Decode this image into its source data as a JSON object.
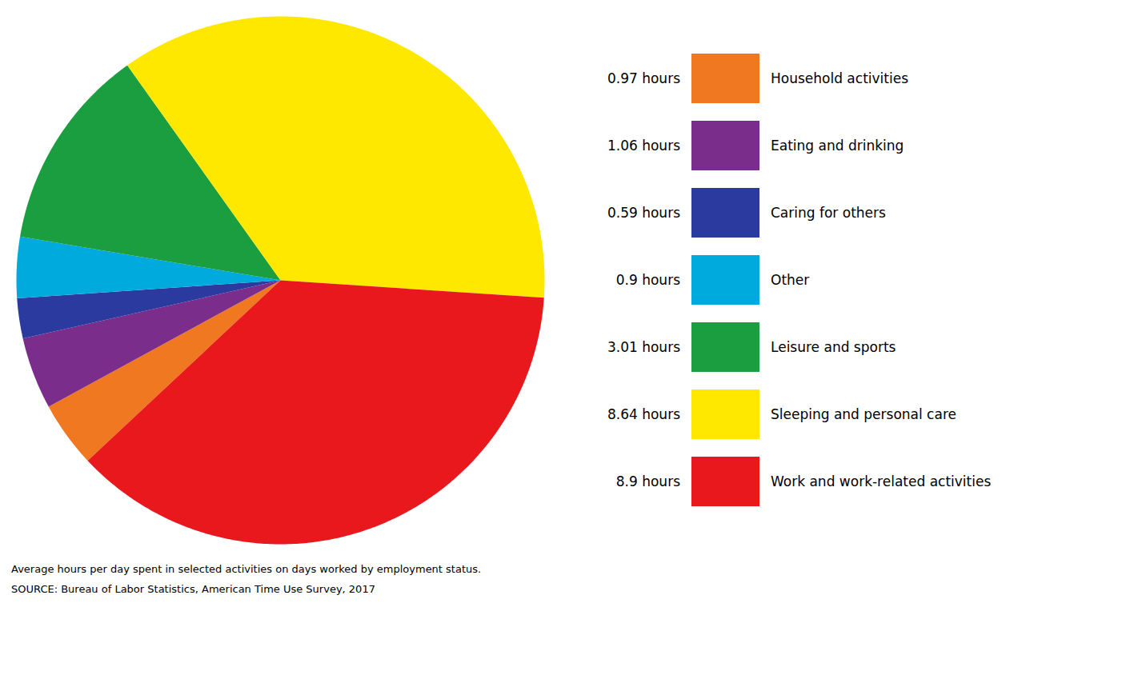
{
  "chart_data": {
    "type": "pie",
    "categories": [
      "Household activities",
      "Eating and drinking",
      "Caring for others",
      "Other",
      "Leisure and sports",
      "Sleeping and personal care",
      "Work and work-related activities"
    ],
    "values": [
      0.97,
      1.06,
      0.59,
      0.9,
      3.01,
      8.64,
      8.9
    ],
    "value_labels": [
      "0.97 hours",
      "1.06 hours",
      "0.59 hours",
      "0.9 hours",
      "3.01 hours",
      "8.64 hours",
      "8.9 hours"
    ],
    "colors": [
      "#F07820",
      "#7B2D8B",
      "#2B3A9F",
      "#00AADD",
      "#1A9E3F",
      "#FFE800",
      "#E8181C"
    ],
    "caption": "Average hours per day spent in selected activities on days worked by employment status.",
    "source": "SOURCE: Bureau of Labor Statistics, American Time Use Survey, 2017"
  }
}
